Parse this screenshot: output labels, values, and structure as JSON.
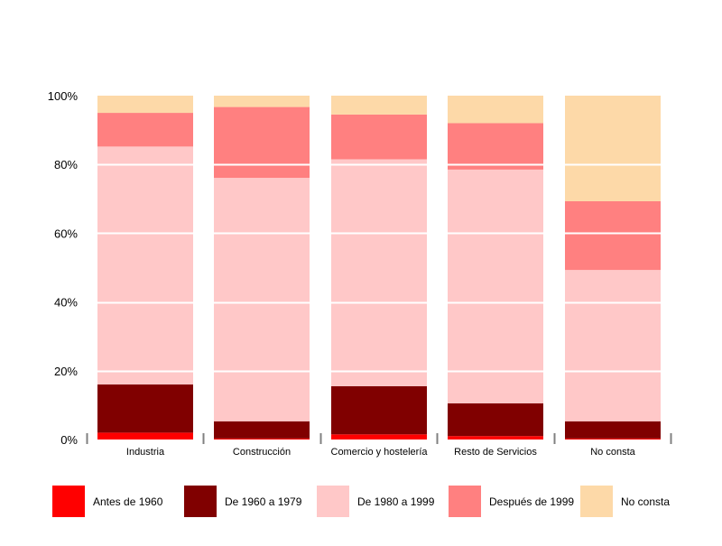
{
  "chart_data": {
    "type": "bar",
    "stacked": true,
    "percent": true,
    "categories": [
      "Industria",
      "Construcción",
      "Comercio y hostelería",
      "Resto de Servicios",
      "No consta"
    ],
    "series": [
      {
        "name": "Antes de 1960",
        "color": "#ff0000",
        "values": [
          2.0,
          0.3,
          1.5,
          1.0,
          0.3
        ]
      },
      {
        "name": "De 1960 a 1979",
        "color": "#800000",
        "values": [
          14.0,
          5.0,
          14.0,
          9.5,
          5.0
        ]
      },
      {
        "name": "De 1980 a 1999",
        "color": "#ffc8c8",
        "values": [
          69.2,
          70.8,
          66.0,
          68.0,
          44.0
        ]
      },
      {
        "name": "Después de 1999",
        "color": "#ff8080",
        "values": [
          9.8,
          20.6,
          13.0,
          13.5,
          20.0
        ]
      },
      {
        "name": "No consta",
        "color": "#fdd9a8",
        "values": [
          5.0,
          3.3,
          5.5,
          8.0,
          30.7
        ]
      }
    ],
    "y_ticks": [
      "0%",
      "20%",
      "40%",
      "60%",
      "80%",
      "100%"
    ],
    "ylim": [
      0,
      100
    ],
    "grid": true,
    "legend": "bottom"
  }
}
